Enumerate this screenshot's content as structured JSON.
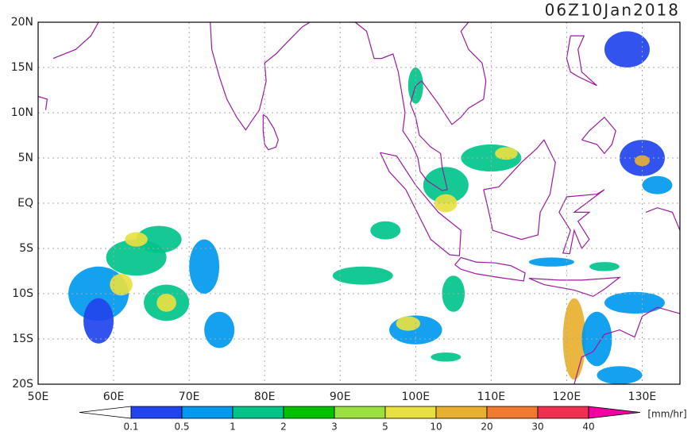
{
  "title": "06Z10Jan2018",
  "lon_range": [
    50,
    135
  ],
  "lat_range": [
    -20,
    20
  ],
  "lat_ticks": [
    {
      "value": 20,
      "label": "20N"
    },
    {
      "value": 15,
      "label": "15N"
    },
    {
      "value": 10,
      "label": "10N"
    },
    {
      "value": 5,
      "label": "5N"
    },
    {
      "value": 0,
      "label": "EQ"
    },
    {
      "value": -5,
      "label": "5S"
    },
    {
      "value": -10,
      "label": "10S"
    },
    {
      "value": -15,
      "label": "15S"
    },
    {
      "value": -20,
      "label": "20S"
    }
  ],
  "lon_ticks": [
    {
      "value": 50,
      "label": "50E"
    },
    {
      "value": 60,
      "label": "60E"
    },
    {
      "value": 70,
      "label": "70E"
    },
    {
      "value": 80,
      "label": "80E"
    },
    {
      "value": 90,
      "label": "90E"
    },
    {
      "value": 100,
      "label": "100E"
    },
    {
      "value": 110,
      "label": "110E"
    },
    {
      "value": 120,
      "label": "120E"
    },
    {
      "value": 130,
      "label": "130E"
    }
  ],
  "colorbar": {
    "levels": [
      0.1,
      0.5,
      1,
      2,
      3,
      5,
      10,
      20,
      30,
      40
    ],
    "colors": [
      "#ffffff",
      "#2244ee",
      "#0099ee",
      "#00c48a",
      "#00c000",
      "#9ae040",
      "#e8e040",
      "#e8b030",
      "#f07a30",
      "#f03050",
      "#f000a0"
    ],
    "unit": "[mm/hr]"
  }
}
